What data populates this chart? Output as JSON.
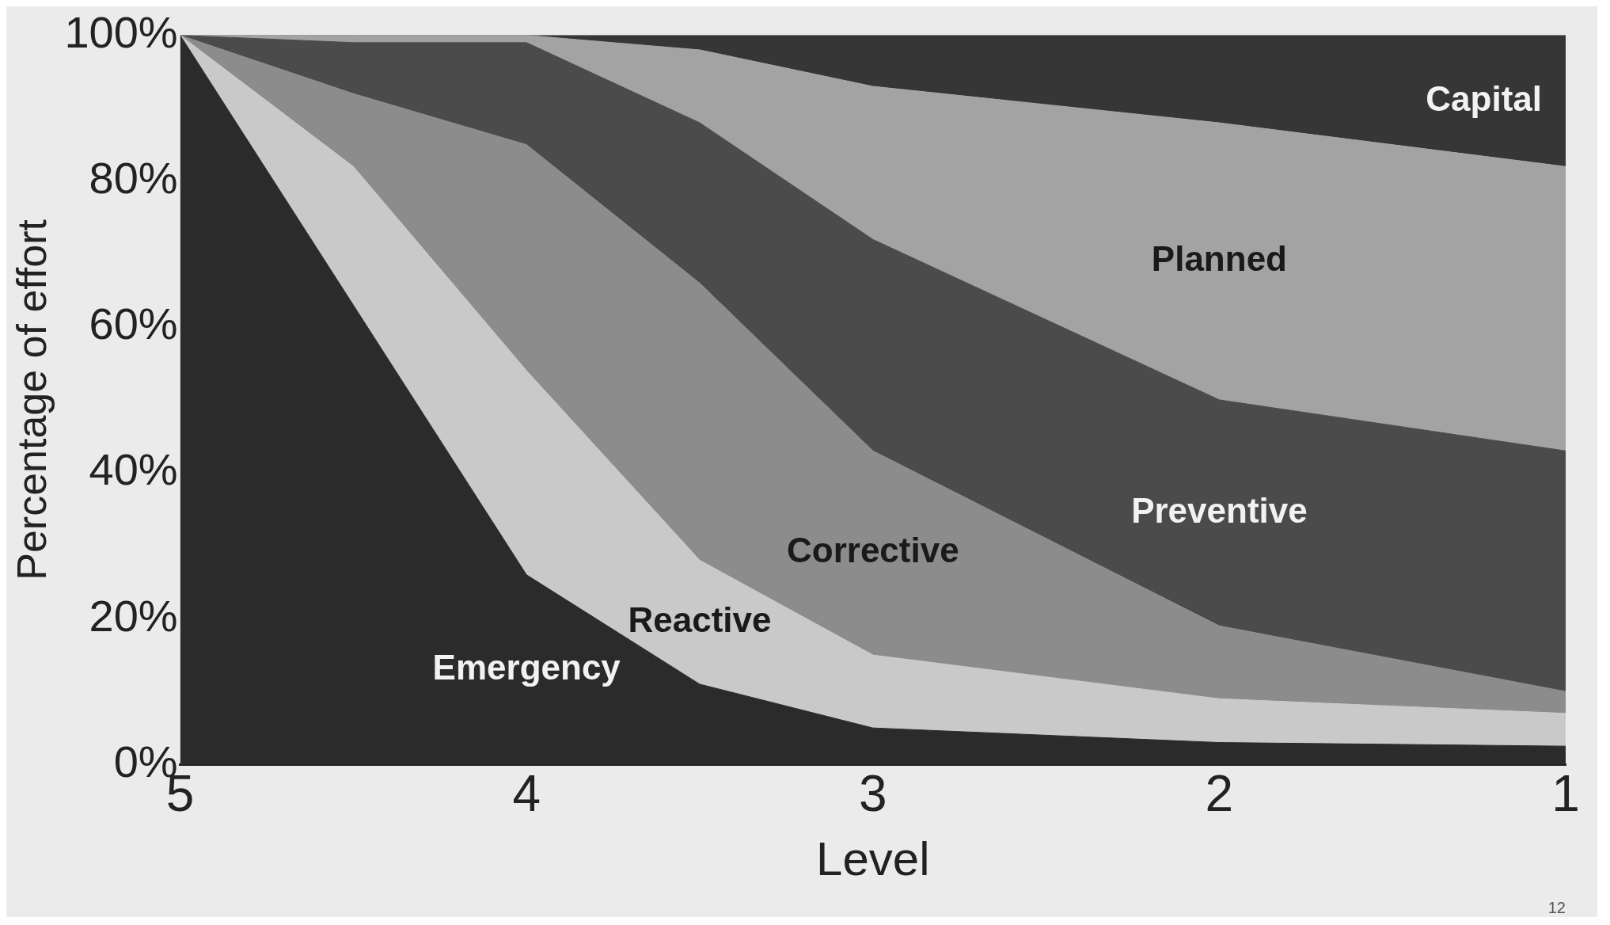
{
  "chart_data": {
    "type": "area",
    "stacked": true,
    "xlabel": "Level",
    "ylabel": "Percentage of effort",
    "x": [
      5,
      4.5,
      4,
      3.5,
      3,
      2,
      1
    ],
    "xlim": [
      5,
      1
    ],
    "xticks": [
      5,
      4,
      3,
      2,
      1
    ],
    "ylim": [
      0,
      100
    ],
    "yticks": [
      {
        "value": 0,
        "label": "0%"
      },
      {
        "value": 20,
        "label": "20%"
      },
      {
        "value": 40,
        "label": "40%"
      },
      {
        "value": 60,
        "label": "60%"
      },
      {
        "value": 80,
        "label": "80%"
      },
      {
        "value": 100,
        "label": "100%"
      }
    ],
    "grid": false,
    "legend": false,
    "series": [
      {
        "name": "Emergency",
        "color": "#2b2b2b",
        "values": [
          100,
          63,
          26,
          11,
          5,
          3,
          2.5
        ]
      },
      {
        "name": "Reactive",
        "color": "#c9c9c9",
        "values": [
          0,
          19,
          28,
          17,
          10,
          6,
          4.5
        ]
      },
      {
        "name": "Corrective",
        "color": "#8c8c8c",
        "values": [
          0,
          10,
          31,
          38,
          28,
          10,
          3
        ]
      },
      {
        "name": "Preventive",
        "color": "#4b4b4b",
        "values": [
          0,
          7,
          14,
          22,
          29,
          31,
          33
        ]
      },
      {
        "name": "Planned",
        "color": "#a3a3a3",
        "values": [
          0,
          1,
          1,
          10,
          21,
          38,
          39
        ]
      },
      {
        "name": "Capital",
        "color": "#363636",
        "values": [
          0,
          0,
          0,
          2,
          7,
          12,
          18
        ]
      }
    ],
    "annotations": [
      "12"
    ]
  }
}
